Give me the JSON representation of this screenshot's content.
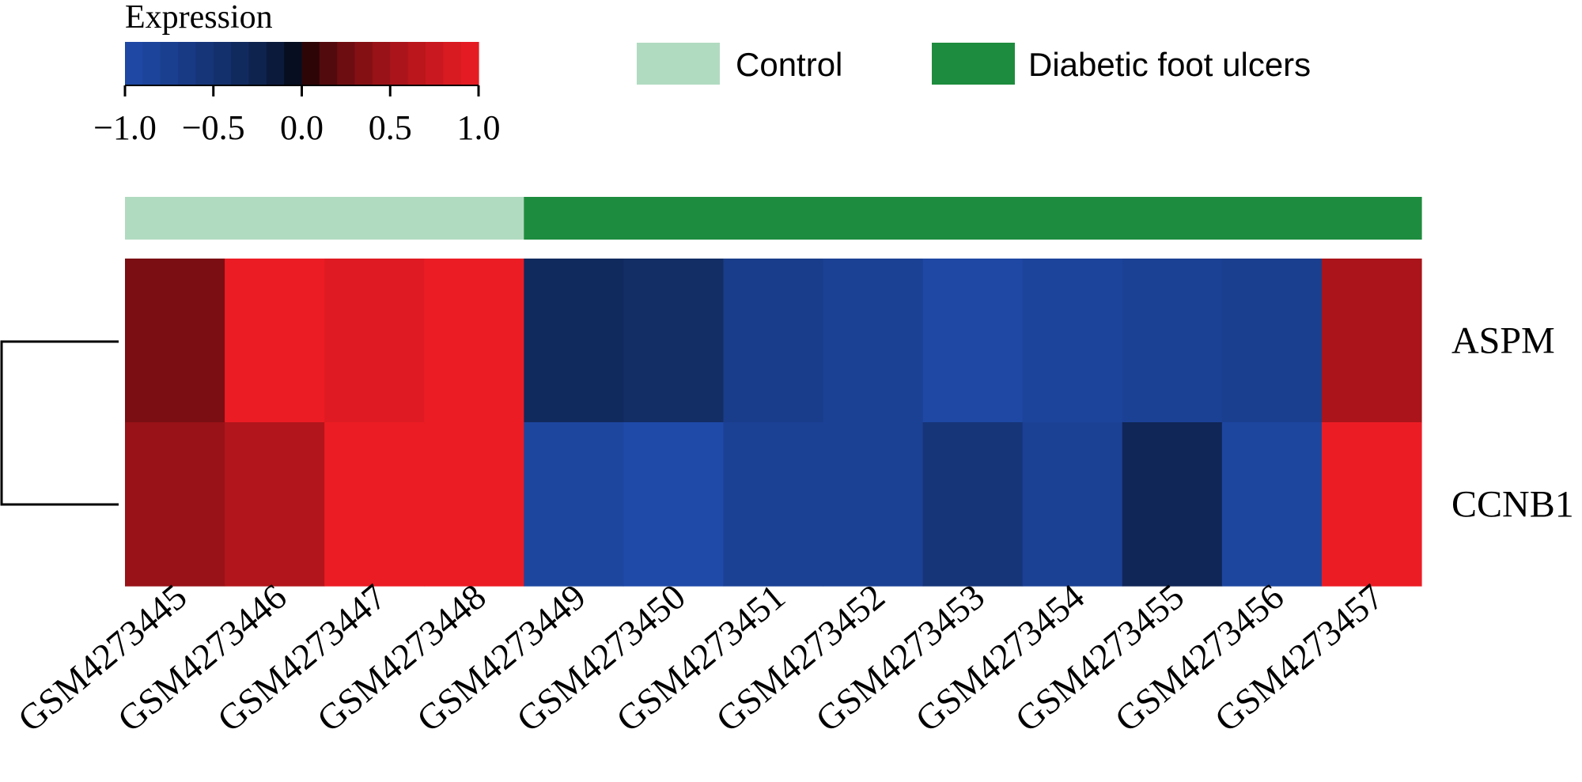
{
  "chart_data": {
    "type": "heatmap",
    "title": "",
    "colorbar": {
      "title": "Expression",
      "range": [
        -1.0,
        1.0
      ],
      "ticks": [
        -1.0,
        -0.5,
        0.0,
        0.5,
        1.0
      ],
      "tick_labels": [
        "−1.0",
        "−0.5",
        "0.0",
        "0.5",
        "1.0"
      ],
      "low_color": "#1f4aa8",
      "mid_color": "#000000",
      "high_color": "#ec1c24"
    },
    "groups": [
      {
        "name": "Control",
        "color": "#b1dbc1"
      },
      {
        "name": "Diabetic foot ulcers",
        "color": "#1e8c3e"
      }
    ],
    "samples": [
      "GSM4273445",
      "GSM4273446",
      "GSM4273447",
      "GSM4273448",
      "GSM4273449",
      "GSM4273450",
      "GSM4273451",
      "GSM4273452",
      "GSM4273453",
      "GSM4273454",
      "GSM4273455",
      "GSM4273456",
      "GSM4273457"
    ],
    "sample_groups": [
      "Control",
      "Control",
      "Control",
      "Control",
      "Diabetic foot ulcers",
      "Diabetic foot ulcers",
      "Diabetic foot ulcers",
      "Diabetic foot ulcers",
      "Diabetic foot ulcers",
      "Diabetic foot ulcers",
      "Diabetic foot ulcers",
      "Diabetic foot ulcers",
      "Diabetic foot ulcers"
    ],
    "genes": [
      "ASPM",
      "CCNB1"
    ],
    "values": [
      [
        0.3,
        1.0,
        0.9,
        1.0,
        -0.35,
        -0.4,
        -0.7,
        -0.8,
        -0.95,
        -0.85,
        -0.8,
        -0.75,
        0.55
      ],
      [
        0.45,
        0.6,
        1.0,
        1.0,
        -0.9,
        -1.0,
        -0.8,
        -0.8,
        -0.55,
        -0.8,
        -0.3,
        -0.9,
        1.0
      ]
    ],
    "row_dendrogram": true
  }
}
